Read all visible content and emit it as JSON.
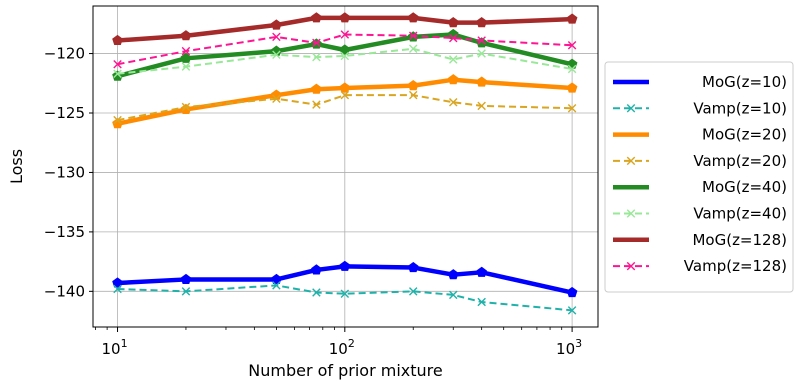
{
  "chart_data": {
    "type": "line",
    "xlabel": "Number of prior mixture",
    "ylabel": "Loss",
    "xscale": "log",
    "xlim": [
      7.8,
      1300
    ],
    "ylim": [
      -143.0,
      -116.0
    ],
    "xticks": [
      {
        "value": 10,
        "base": "10",
        "exp": "1"
      },
      {
        "value": 100,
        "base": "10",
        "exp": "2"
      },
      {
        "value": 1000,
        "base": "10",
        "exp": "3"
      }
    ],
    "yticks": [
      {
        "value": -120,
        "label": "−120"
      },
      {
        "value": -125,
        "label": "−125"
      },
      {
        "value": -130,
        "label": "−130"
      },
      {
        "value": -135,
        "label": "−135"
      },
      {
        "value": -140,
        "label": "−140"
      }
    ],
    "grid": true,
    "legend_position": "right-outside",
    "x": [
      10,
      20,
      50,
      75,
      100,
      200,
      300,
      400,
      1000
    ],
    "series": [
      {
        "name": "MoG(z=10)",
        "style": "solid",
        "marker": "pentagon",
        "color": "#0000ff",
        "values": [
          -139.3,
          -139.0,
          -139.0,
          -138.2,
          -137.9,
          -138.0,
          -138.6,
          -138.4,
          -140.1
        ]
      },
      {
        "name": "Vamp(z=10)",
        "style": "dashed",
        "marker": "x",
        "color": "#20b2aa",
        "values": [
          -139.8,
          -140.0,
          -139.5,
          -140.1,
          -140.2,
          -140.0,
          -140.3,
          -140.9,
          -141.6
        ]
      },
      {
        "name": "MoG(z=20)",
        "style": "solid",
        "marker": "pentagon",
        "color": "#ff8c00",
        "values": [
          -125.9,
          -124.7,
          -123.5,
          -123.0,
          -122.9,
          -122.7,
          -122.2,
          -122.4,
          -122.9
        ]
      },
      {
        "name": "Vamp(z=20)",
        "style": "dashed",
        "marker": "x",
        "color": "#daa520",
        "values": [
          -125.6,
          -124.5,
          -123.8,
          -124.3,
          -123.5,
          -123.5,
          -124.1,
          -124.4,
          -124.6
        ]
      },
      {
        "name": "MoG(z=40)",
        "style": "solid",
        "marker": "pentagon",
        "color": "#228b22",
        "values": [
          -121.9,
          -120.4,
          -119.8,
          -119.2,
          -119.7,
          -118.6,
          -118.4,
          -119.1,
          -120.9
        ]
      },
      {
        "name": "Vamp(z=40)",
        "style": "dashed",
        "marker": "x",
        "color": "#98e898",
        "values": [
          -121.7,
          -121.1,
          -120.1,
          -120.3,
          -120.2,
          -119.6,
          -120.5,
          -120.0,
          -121.3
        ]
      },
      {
        "name": "MoG(z=128)",
        "style": "solid",
        "marker": "pentagon",
        "color": "#a52a2a",
        "values": [
          -118.9,
          -118.5,
          -117.6,
          -117.0,
          -117.0,
          -117.0,
          -117.4,
          -117.4,
          -117.1
        ]
      },
      {
        "name": "Vamp(z=128)",
        "style": "dashed",
        "marker": "x",
        "color": "#ff1493",
        "values": [
          -120.9,
          -119.8,
          -118.6,
          -119.1,
          -118.4,
          -118.5,
          -118.7,
          -118.9,
          -119.3
        ]
      }
    ]
  }
}
